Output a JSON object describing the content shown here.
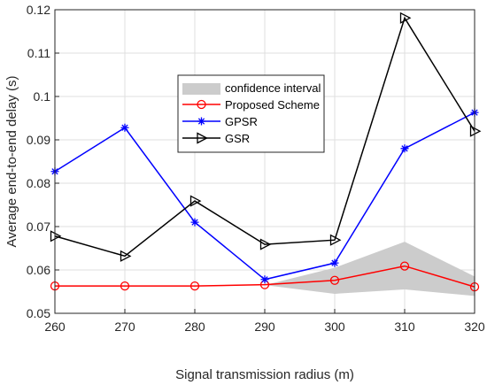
{
  "chart_data": {
    "type": "line",
    "title": "",
    "xlabel": "Signal transmission radius (m)",
    "ylabel": "Average end-to-end delay (s)",
    "x": [
      260,
      270,
      280,
      290,
      300,
      310,
      320
    ],
    "xlim": [
      260,
      320
    ],
    "ylim": [
      0.05,
      0.12
    ],
    "xticks": [
      "260",
      "270",
      "280",
      "290",
      "300",
      "310",
      "320"
    ],
    "yticks": [
      "0.05",
      "0.06",
      "0.07",
      "0.08",
      "0.09",
      "0.1",
      "0.11",
      "0.12"
    ],
    "grid": true,
    "legend_position": "center",
    "confidence_band": {
      "name": "confidence interval",
      "color": "#cccccc",
      "x": [
        290,
        300,
        310,
        320
      ],
      "lower": [
        0.0565,
        0.0545,
        0.0555,
        0.054
      ],
      "upper": [
        0.0565,
        0.0605,
        0.0665,
        0.0585
      ]
    },
    "series": [
      {
        "name": "Proposed Scheme",
        "color": "#ff0000",
        "marker": "circle",
        "values": [
          0.0563,
          0.0563,
          0.0563,
          0.0566,
          0.0576,
          0.0609,
          0.0561
        ]
      },
      {
        "name": "GPSR",
        "color": "#0000ff",
        "marker": "asterisk",
        "values": [
          0.0827,
          0.0928,
          0.071,
          0.0578,
          0.0616,
          0.088,
          0.0963
        ]
      },
      {
        "name": "GSR",
        "color": "#000000",
        "marker": "triangle-right",
        "values": [
          0.0678,
          0.0632,
          0.0759,
          0.0659,
          0.0669,
          0.1181,
          0.092
        ]
      }
    ]
  }
}
